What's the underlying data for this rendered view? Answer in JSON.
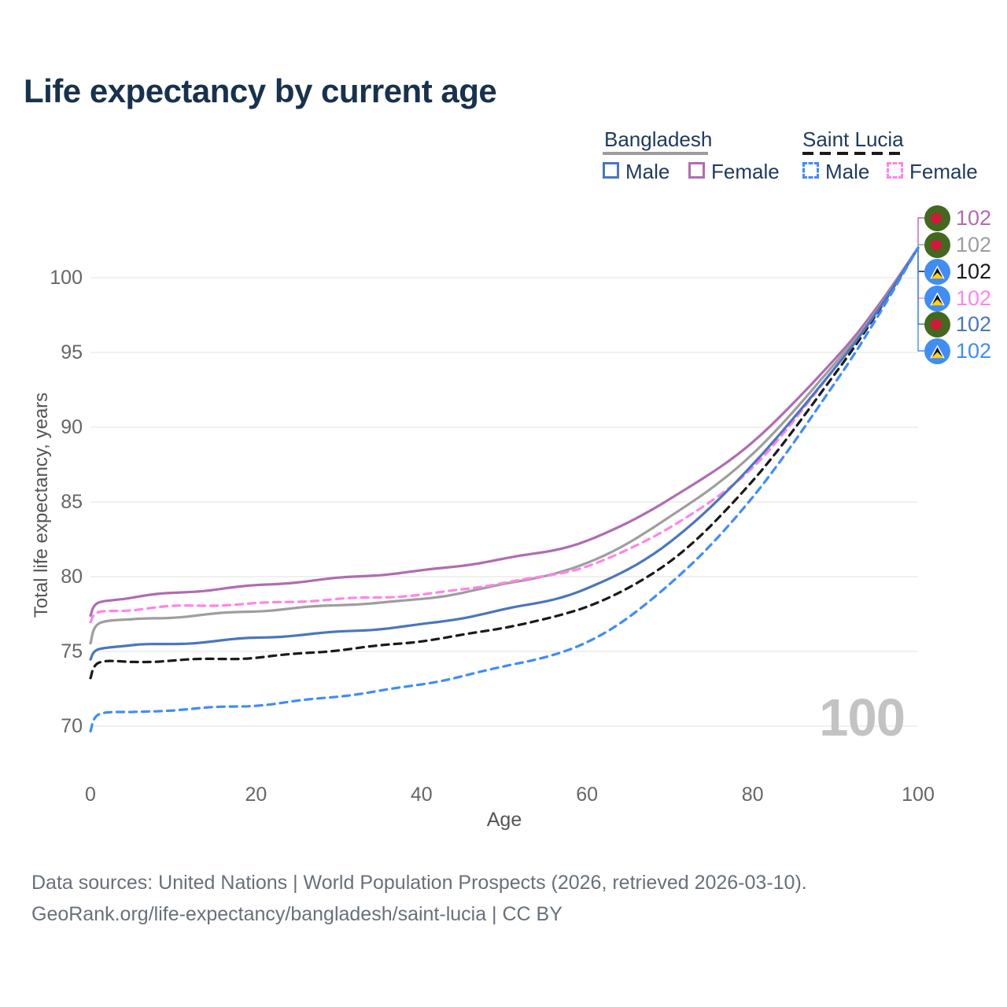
{
  "title": "Life expectancy by current age",
  "legend": {
    "groups": [
      {
        "name": "Bangladesh",
        "line_style": "solid",
        "underline_color": "#9e9e9e",
        "items": [
          {
            "label": "Male",
            "color": "#4b76bd"
          },
          {
            "label": "Female",
            "color": "#b06cb0"
          }
        ]
      },
      {
        "name": "Saint Lucia",
        "line_style": "dashed",
        "underline_color": "#1a1a1a",
        "items": [
          {
            "label": "Male",
            "color": "#3e8cfd"
          },
          {
            "label": "Female",
            "color": "#ff85e8"
          }
        ]
      }
    ]
  },
  "watermark": "100",
  "footer": {
    "line1": "Data sources: United Nations | World Population Prospects (2026, retrieved 2026-03-10).",
    "line2": "GeoRank.org/life-expectancy/bangladesh/saint-lucia | CC BY"
  },
  "chart_data": {
    "type": "line",
    "title": "Life expectancy by current age",
    "xlabel": "Age",
    "ylabel": "Total life expectancy, years",
    "xlim": [
      0,
      100
    ],
    "ylim": [
      68,
      103
    ],
    "x_ticks": [
      "0",
      "20",
      "40",
      "60",
      "80",
      "100"
    ],
    "x_tick_values": [
      0,
      20,
      40,
      60,
      80,
      100
    ],
    "y_ticks": [
      "70",
      "75",
      "80",
      "85",
      "90",
      "95",
      "100"
    ],
    "y_tick_values": [
      70,
      75,
      80,
      85,
      90,
      95,
      100
    ],
    "grid": "horizontal",
    "legend_position": "top-right",
    "ages": [
      0,
      1,
      5,
      10,
      20,
      30,
      40,
      50,
      60,
      70,
      80,
      90,
      95,
      100
    ],
    "series": [
      {
        "name": "Bangladesh Female",
        "country": "Bangladesh",
        "sex": "Female",
        "flag": "bd",
        "color": "#b06cb0",
        "dashed": false,
        "end_label": "102",
        "values": [
          77.4,
          78.3,
          78.6,
          78.9,
          79.4,
          79.9,
          80.4,
          81.2,
          82.4,
          85.2,
          89.0,
          94.6,
          98.0,
          102
        ]
      },
      {
        "name": "Bangladesh Both sexes",
        "country": "Bangladesh",
        "sex": "Both",
        "flag": "bd",
        "color": "#9e9e9e",
        "dashed": false,
        "end_label": "102",
        "values": [
          75.6,
          76.9,
          77.1,
          77.3,
          77.7,
          78.1,
          78.5,
          79.5,
          80.9,
          84.0,
          88.2,
          94.3,
          97.8,
          102
        ]
      },
      {
        "name": "Saint Lucia Both sexes",
        "country": "Saint Lucia",
        "sex": "Both",
        "flag": "lc",
        "color": "#1a1a1a",
        "dashed": true,
        "end_label": "102",
        "values": [
          73.2,
          74.2,
          74.3,
          74.4,
          74.6,
          75.1,
          75.7,
          76.6,
          78.0,
          81.0,
          86.4,
          93.6,
          97.6,
          102
        ]
      },
      {
        "name": "Saint Lucia Female",
        "country": "Saint Lucia",
        "sex": "Female",
        "flag": "lc",
        "color": "#ff85e8",
        "dashed": true,
        "end_label": "102",
        "values": [
          76.9,
          77.6,
          77.8,
          78.0,
          78.2,
          78.5,
          78.8,
          79.6,
          80.7,
          83.3,
          87.3,
          94.0,
          97.7,
          102
        ]
      },
      {
        "name": "Bangladesh Male",
        "country": "Bangladesh",
        "sex": "Male",
        "flag": "bd",
        "color": "#4b76bd",
        "dashed": false,
        "end_label": "102",
        "values": [
          74.5,
          75.2,
          75.4,
          75.5,
          75.9,
          76.3,
          76.8,
          77.8,
          79.2,
          82.3,
          87.5,
          94.0,
          97.7,
          102
        ]
      },
      {
        "name": "Saint Lucia Male",
        "country": "Saint Lucia",
        "sex": "Male",
        "flag": "lc",
        "color": "#3e8cfd",
        "dashed": true,
        "end_label": "102",
        "values": [
          69.7,
          70.8,
          70.9,
          71.1,
          71.4,
          72.0,
          72.8,
          74.0,
          75.6,
          79.5,
          85.3,
          93.0,
          97.3,
          102
        ]
      }
    ],
    "flag_colors": {
      "bd_field": "#42691f",
      "bd_disc": "#d7153a",
      "lc_field": "#3f8df5",
      "lc_white": "#ffffff",
      "lc_black": "#121212",
      "lc_gold": "#fcd116"
    }
  }
}
